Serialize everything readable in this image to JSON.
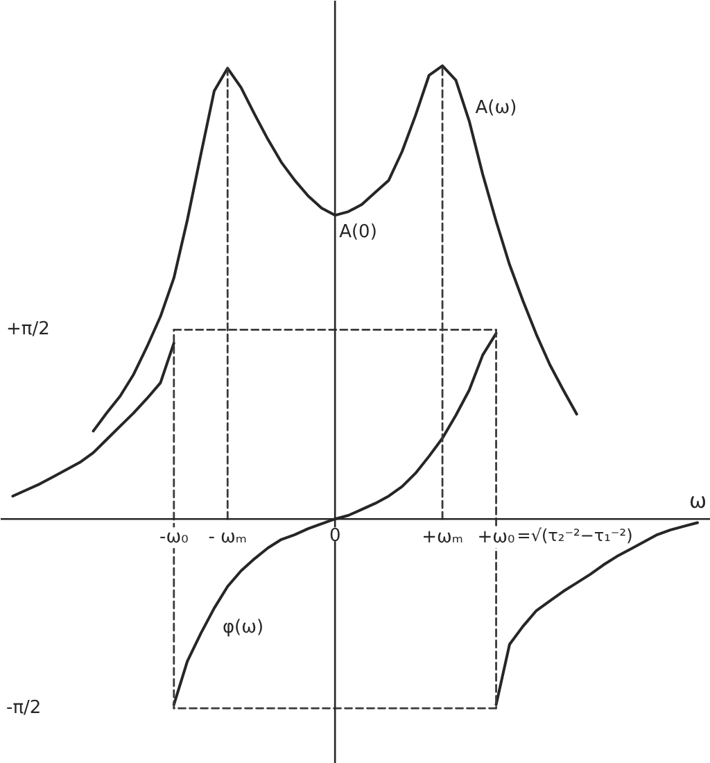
{
  "chart_data": {
    "type": "line",
    "xlabel": "ω",
    "categories": [
      null,
      null,
      null,
      null,
      null,
      null,
      null,
      null,
      null,
      null,
      null,
      null,
      "-ω₀",
      null,
      null,
      null,
      "- ωₘ",
      null,
      null,
      null,
      null,
      null,
      null,
      null,
      "0",
      null,
      null,
      null,
      null,
      null,
      null,
      null,
      "+ωₘ",
      null,
      null,
      null,
      "+ω₀",
      null,
      null,
      null,
      null,
      null,
      null,
      null,
      null,
      null,
      null,
      null,
      null,
      null,
      null,
      null
    ],
    "ylim": [
      -2.03,
      4.3
    ],
    "yticks": [
      {
        "value": 1.57,
        "label": "+π/2"
      },
      {
        "value": -1.57,
        "label": "-π/2"
      }
    ],
    "annotations": [
      {
        "text": "A(0)",
        "x": "0",
        "y": 2.52
      },
      "=√(τ₂⁻²−τ₁⁻²)"
    ],
    "series": [
      {
        "name": "A(ω)",
        "color": "#262626",
        "values": [
          null,
          null,
          null,
          null,
          null,
          null,
          0.73,
          0.88,
          1.02,
          1.2,
          1.43,
          1.68,
          2.0,
          2.48,
          3.02,
          3.55,
          3.74,
          3.58,
          3.36,
          3.15,
          2.96,
          2.81,
          2.68,
          2.58,
          2.52,
          2.55,
          2.61,
          2.71,
          2.81,
          3.05,
          3.35,
          3.68,
          3.76,
          3.64,
          3.3,
          2.86,
          2.47,
          2.11,
          1.81,
          1.53,
          1.28,
          1.07,
          0.87,
          null,
          null,
          null,
          null,
          null,
          null,
          null,
          null,
          null
        ]
      },
      {
        "color": "#262626",
        "values": [
          0.19,
          0.24,
          0.29,
          0.35,
          0.41,
          0.47,
          0.55,
          0.66,
          0.77,
          0.88,
          1.0,
          1.13,
          1.46,
          null,
          null,
          null,
          null,
          null,
          null,
          null,
          null,
          null,
          null,
          null,
          null,
          null,
          null,
          null,
          null,
          null,
          null,
          null,
          null,
          null,
          null,
          null,
          null,
          null,
          null,
          null,
          null,
          null,
          null,
          null,
          null,
          null,
          null,
          null,
          null,
          null,
          null,
          null
        ]
      },
      {
        "name": "φ(ω)",
        "color": "#262626",
        "values": [
          null,
          null,
          null,
          null,
          null,
          null,
          null,
          null,
          null,
          null,
          null,
          null,
          -1.54,
          -1.18,
          -0.95,
          -0.74,
          -0.56,
          -0.43,
          -0.33,
          -0.24,
          -0.17,
          -0.13,
          -0.08,
          -0.04,
          0,
          0.03,
          0.08,
          0.13,
          0.19,
          0.27,
          0.38,
          0.52,
          0.67,
          0.86,
          1.07,
          1.36,
          1.54,
          null,
          null,
          null,
          null,
          null,
          null,
          null,
          null,
          null,
          null,
          null,
          null,
          null,
          null,
          null
        ]
      },
      {
        "color": "#262626",
        "values": [
          null,
          null,
          null,
          null,
          null,
          null,
          null,
          null,
          null,
          null,
          null,
          null,
          null,
          null,
          null,
          null,
          null,
          null,
          null,
          null,
          null,
          null,
          null,
          null,
          null,
          null,
          null,
          null,
          null,
          null,
          null,
          null,
          null,
          null,
          null,
          null,
          -1.54,
          -1.04,
          -0.89,
          -0.76,
          -0.68,
          -0.6,
          -0.53,
          -0.46,
          -0.38,
          -0.31,
          -0.25,
          -0.19,
          -0.13,
          -0.09,
          -0.06,
          -0.03
        ]
      },
      {
        "color": "#3a3a3a",
        "line_style": "dashed",
        "x": [
          "- ωₘ",
          "- ωₘ"
        ],
        "values": [
          0,
          3.74
        ]
      },
      {
        "color": "#3a3a3a",
        "line_style": "dashed",
        "x": [
          "+ωₘ",
          "+ωₘ"
        ],
        "values": [
          0,
          3.76
        ]
      },
      {
        "color": "#3a3a3a",
        "line_style": "dashed",
        "x": [
          "-ω₀",
          "+ω₀"
        ],
        "values": [
          1.57,
          1.57
        ]
      },
      {
        "color": "#3a3a3a",
        "line_style": "dashed",
        "x": [
          "+ω₀",
          "+ω₀"
        ],
        "values": [
          1.57,
          -1.57
        ]
      },
      {
        "color": "#3a3a3a",
        "line_style": "dashed",
        "x": [
          "+ω₀",
          "-ω₀"
        ],
        "values": [
          -1.57,
          -1.57
        ]
      },
      {
        "color": "#3a3a3a",
        "line_style": "dashed",
        "x": [
          "-ω₀",
          "-ω₀"
        ],
        "values": [
          -1.57,
          1.57
        ]
      }
    ]
  }
}
